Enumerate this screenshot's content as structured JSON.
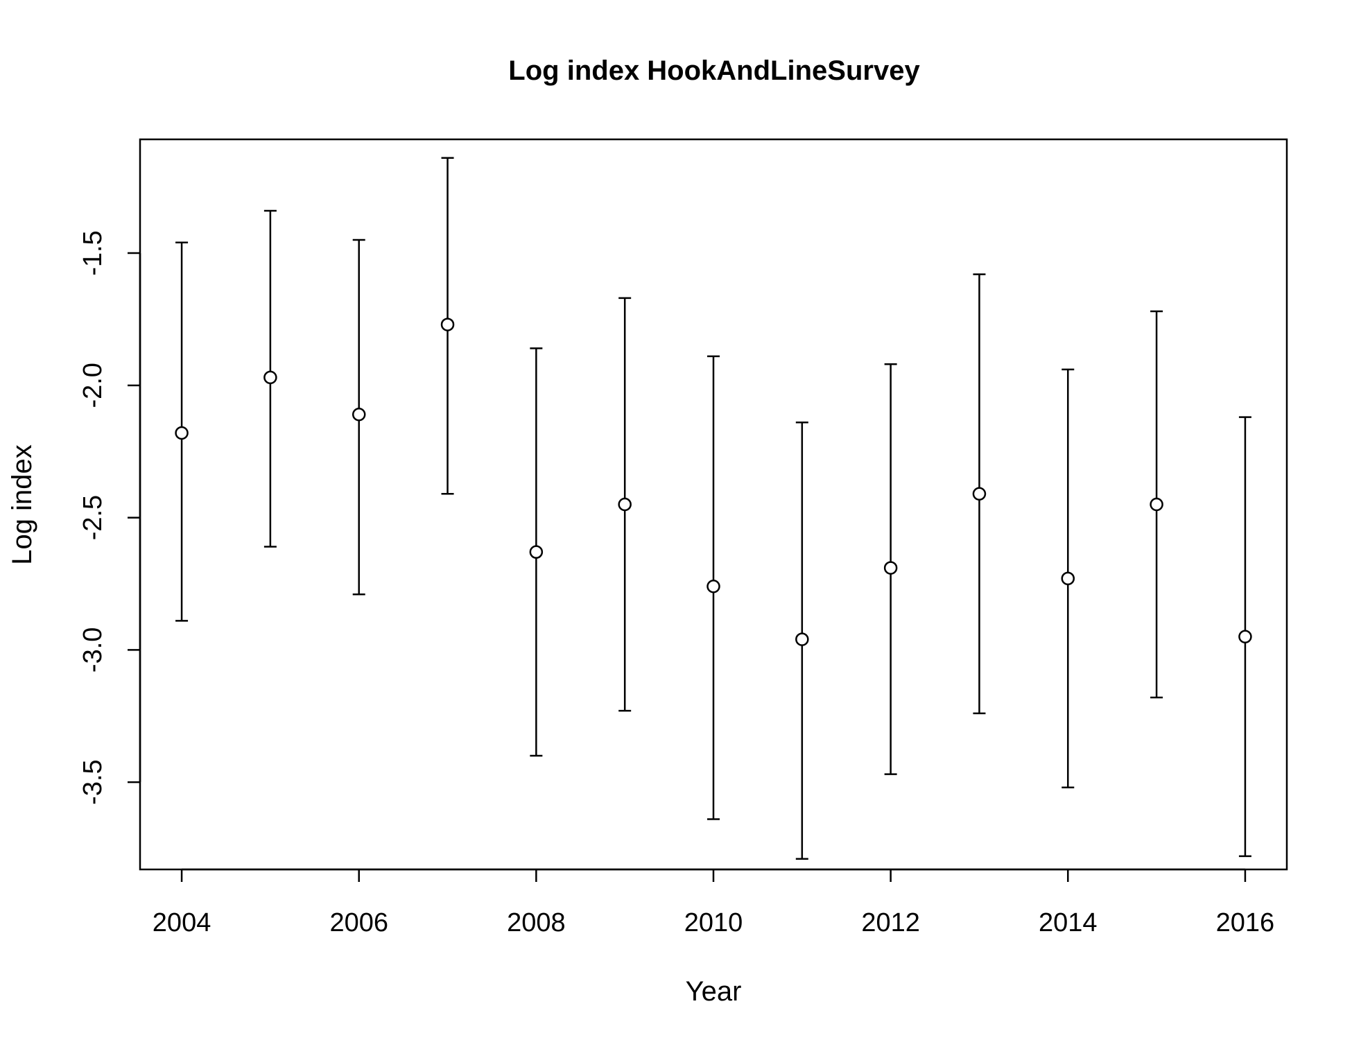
{
  "chart_data": {
    "type": "scatter",
    "title": "Log index HookAndLineSurvey",
    "xlabel": "Year",
    "ylabel": "Log index",
    "xlim": [
      2003.53,
      2016.47
    ],
    "ylim": [
      -3.83,
      -1.07
    ],
    "xticks": [
      2004,
      2006,
      2008,
      2010,
      2012,
      2014,
      2016
    ],
    "xtick_labels": [
      "2004",
      "2006",
      "2008",
      "2010",
      "2012",
      "2014",
      "2016"
    ],
    "yticks": [
      -1.5,
      -2.0,
      -2.5,
      -3.0,
      -3.5
    ],
    "ytick_labels": [
      "-1.5",
      "-2.0",
      "-2.5",
      "-3.0",
      "-3.5"
    ],
    "grid": false,
    "marker": "open-circle",
    "error_bars": true,
    "points": [
      {
        "x": 2004,
        "y": -2.18,
        "lower": -2.89,
        "upper": -1.46
      },
      {
        "x": 2005,
        "y": -1.97,
        "lower": -2.61,
        "upper": -1.34
      },
      {
        "x": 2006,
        "y": -2.11,
        "lower": -2.79,
        "upper": -1.45
      },
      {
        "x": 2007,
        "y": -1.77,
        "lower": -2.41,
        "upper": -1.14
      },
      {
        "x": 2008,
        "y": -2.63,
        "lower": -3.4,
        "upper": -1.86
      },
      {
        "x": 2009,
        "y": -2.45,
        "lower": -3.23,
        "upper": -1.67
      },
      {
        "x": 2010,
        "y": -2.76,
        "lower": -3.64,
        "upper": -1.89
      },
      {
        "x": 2011,
        "y": -2.96,
        "lower": -3.79,
        "upper": -2.14
      },
      {
        "x": 2012,
        "y": -2.69,
        "lower": -3.47,
        "upper": -1.92
      },
      {
        "x": 2013,
        "y": -2.41,
        "lower": -3.24,
        "upper": -1.58
      },
      {
        "x": 2014,
        "y": -2.73,
        "lower": -3.52,
        "upper": -1.94
      },
      {
        "x": 2015,
        "y": -2.45,
        "lower": -3.18,
        "upper": -1.72
      },
      {
        "x": 2016,
        "y": -2.95,
        "lower": -3.78,
        "upper": -2.12
      }
    ]
  }
}
